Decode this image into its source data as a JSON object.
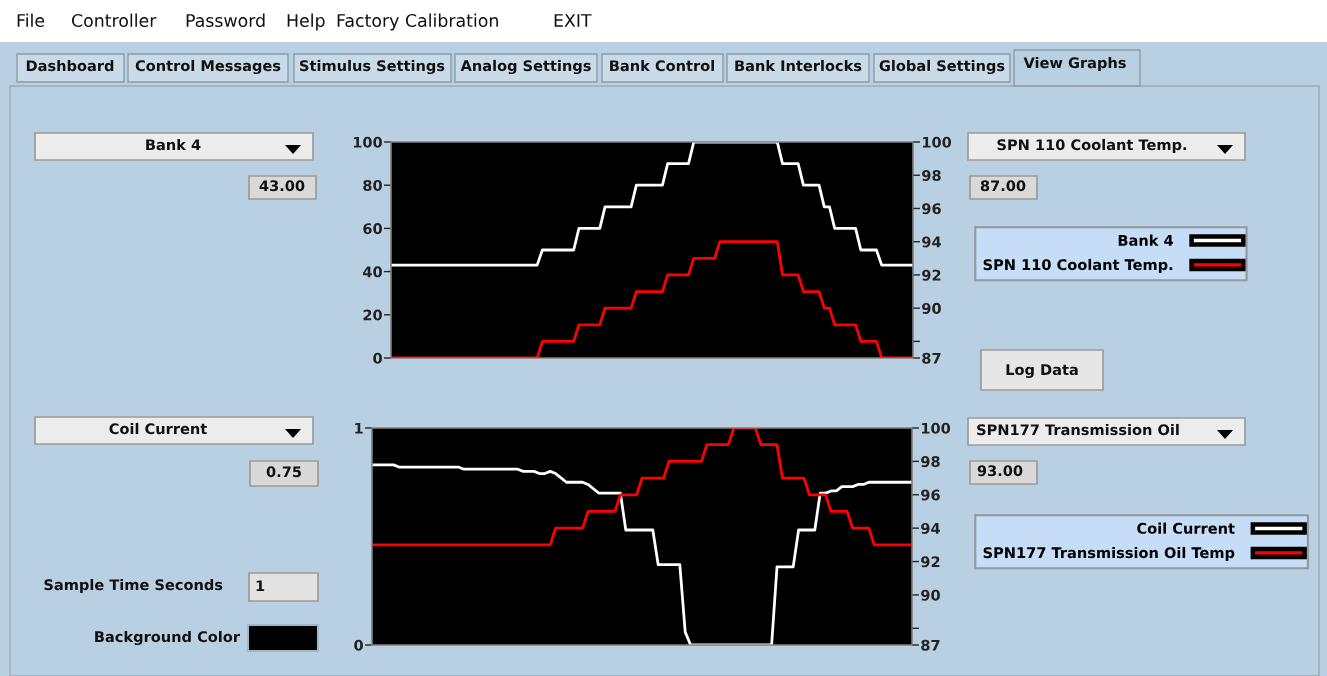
{
  "chart_data": [
    {
      "type": "other",
      "annotations": [
        "File",
        "Controller",
        "Password",
        "Help",
        "Factory Calibration",
        "EXIT",
        "Dashboard",
        "Control Messages",
        "Stimulus Settings",
        "Analog Settings",
        "Bank Control",
        "Bank Interlocks",
        "Global Settings",
        "View Graphs"
      ]
    },
    {
      "type": "line",
      "categories": [
        null,
        null,
        null,
        null,
        null,
        null,
        null,
        null,
        null,
        null,
        null,
        null,
        null,
        null,
        null,
        null,
        null,
        null,
        null,
        null,
        null,
        null,
        null,
        null,
        null,
        null,
        null,
        null,
        null,
        null,
        null,
        null,
        null,
        null,
        null,
        null,
        null,
        null,
        null,
        null,
        null,
        null,
        null,
        null,
        null,
        null,
        null,
        null,
        null,
        null,
        null,
        null,
        null,
        null,
        null,
        null,
        null,
        null,
        null,
        null,
        null,
        null,
        null,
        null,
        null,
        null,
        null,
        null,
        null,
        null,
        null,
        null,
        null,
        null,
        null,
        null,
        null,
        null,
        null,
        null,
        null,
        null,
        null,
        null,
        null,
        null,
        null,
        null,
        null,
        null,
        null,
        null,
        null,
        null,
        null,
        null,
        null,
        null,
        null,
        null,
        null
      ],
      "series": [
        {
          "name": "Bank 4",
          "color": "#ffffff",
          "values": [
            43,
            43,
            43,
            43,
            43,
            43,
            43,
            43,
            43,
            43,
            43,
            43,
            43,
            43,
            43,
            43,
            43,
            43,
            43,
            43,
            43,
            43,
            43,
            43,
            43,
            43,
            43,
            43,
            43,
            50,
            50,
            50,
            50,
            50,
            50,
            50,
            60,
            60,
            60,
            60,
            60,
            70,
            70,
            70,
            70,
            70,
            70,
            80,
            80,
            80,
            80,
            80,
            80,
            90,
            90,
            90,
            90,
            90,
            100,
            100,
            100,
            100,
            100,
            100,
            100,
            100,
            100,
            100,
            100,
            100,
            100,
            100,
            100,
            100,
            100,
            90,
            90,
            90,
            90,
            80,
            80,
            80,
            80,
            70,
            70,
            60,
            60,
            60,
            60,
            60,
            50,
            50,
            50,
            50,
            43,
            43,
            43,
            43,
            43,
            43,
            43
          ]
        },
        {
          "name": "SPN 110 Coolant Temp.",
          "color": "#ff0000",
          "axis": "y2",
          "values": [
            87,
            87,
            87,
            87,
            87,
            87,
            87,
            87,
            87,
            87,
            87,
            87,
            87,
            87,
            87,
            87,
            87,
            87,
            87,
            87,
            87,
            87,
            87,
            87,
            87,
            87,
            87,
            87,
            87,
            88,
            88,
            88,
            88,
            88,
            88,
            88,
            89,
            89,
            89,
            89,
            89,
            90,
            90,
            90,
            90,
            90,
            90,
            91,
            91,
            91,
            91,
            91,
            91,
            92,
            92,
            92,
            92,
            92,
            93,
            93,
            93,
            93,
            93,
            94,
            94,
            94,
            94,
            94,
            94,
            94,
            94,
            94,
            94,
            94,
            94,
            92,
            92,
            92,
            92,
            91,
            91,
            91,
            91,
            90,
            90,
            89,
            89,
            89,
            89,
            89,
            88,
            88,
            88,
            88,
            87,
            87,
            87,
            87,
            87,
            87,
            87
          ]
        }
      ],
      "ylim": [
        0,
        100
      ],
      "yticks": [
        0,
        20,
        40,
        60,
        80,
        100
      ],
      "y2lim": [
        87,
        100
      ],
      "y2ticks": [
        100,
        98,
        96,
        94,
        92,
        90,
        {
          "value": 88,
          "label": null
        },
        87
      ],
      "legend": "right",
      "grid": false,
      "marker": "none",
      "line_style": "solid",
      "annotations": [
        "Bank 4",
        "43.00",
        "SPN 110 Coolant Temp.",
        "87.00",
        "Log Data"
      ]
    },
    {
      "type": "line",
      "categories": [
        null,
        null,
        null,
        null,
        null,
        null,
        null,
        null,
        null,
        null,
        null,
        null,
        null,
        null,
        null,
        null,
        null,
        null,
        null,
        null,
        null,
        null,
        null,
        null,
        null,
        null,
        null,
        null,
        null,
        null,
        null,
        null,
        null,
        null,
        null,
        null,
        null,
        null,
        null,
        null,
        null,
        null,
        null,
        null,
        null,
        null,
        null,
        null,
        null,
        null,
        null,
        null,
        null,
        null,
        null,
        null,
        null,
        null,
        null,
        null,
        null,
        null,
        null,
        null,
        null,
        null,
        null,
        null,
        null,
        null,
        null,
        null,
        null,
        null,
        null,
        null,
        null,
        null,
        null,
        null,
        null,
        null,
        null,
        null,
        null,
        null,
        null,
        null,
        null,
        null,
        null,
        null,
        null,
        null,
        null,
        null,
        null,
        null,
        null,
        null,
        null
      ],
      "series": [
        {
          "name": "Coil Current",
          "color": "#ffffff",
          "values": [
            0.83,
            0.83,
            0.83,
            0.83,
            0.83,
            0.82,
            0.82,
            0.82,
            0.82,
            0.82,
            0.82,
            0.82,
            0.82,
            0.82,
            0.82,
            0.82,
            0.82,
            0.81,
            0.81,
            0.81,
            0.81,
            0.81,
            0.81,
            0.81,
            0.81,
            0.81,
            0.81,
            0.81,
            0.8,
            0.8,
            0.8,
            0.79,
            0.79,
            0.8,
            0.79,
            0.77,
            0.75,
            0.75,
            0.75,
            0.75,
            0.74,
            0.72,
            0.7,
            0.7,
            0.7,
            0.7,
            0.7,
            0.53,
            0.53,
            0.53,
            0.53,
            0.53,
            0.53,
            0.37,
            0.37,
            0.37,
            0.37,
            0.37,
            0.06,
            0,
            0,
            0,
            0,
            0,
            0,
            0,
            0,
            0,
            0,
            0,
            0,
            0,
            0,
            0,
            0,
            0.36,
            0.36,
            0.36,
            0.36,
            0.53,
            0.53,
            0.53,
            0.53,
            0.7,
            0.7,
            0.71,
            0.71,
            0.73,
            0.73,
            0.73,
            0.74,
            0.74,
            0.75,
            0.75,
            0.75,
            0.75,
            0.75,
            0.75,
            0.75,
            0.75,
            0.75
          ]
        },
        {
          "name": "SPN177 Transmission Oil Temp",
          "color": "#ff0000",
          "axis": "y2",
          "values": [
            93,
            93,
            93,
            93,
            93,
            93,
            93,
            93,
            93,
            93,
            93,
            93,
            93,
            93,
            93,
            93,
            93,
            93,
            93,
            93,
            93,
            93,
            93,
            93,
            93,
            93,
            93,
            93,
            93,
            93,
            93,
            93,
            93,
            93,
            94,
            94,
            94,
            94,
            94,
            94,
            95,
            95,
            95,
            95,
            95,
            95,
            96,
            96,
            96,
            96,
            97,
            97,
            97,
            97,
            97,
            98,
            98,
            98,
            98,
            98,
            98,
            98,
            99,
            99,
            99,
            99,
            99,
            100,
            100,
            100,
            100,
            100,
            99,
            99,
            99,
            99,
            97,
            97,
            97,
            97,
            97,
            96,
            96,
            96,
            96,
            95,
            95,
            95,
            95,
            94,
            94,
            94,
            94,
            93,
            93,
            93,
            93,
            93,
            93,
            93,
            93
          ]
        }
      ],
      "ylim": [
        0,
        1
      ],
      "yticks": [
        0,
        1
      ],
      "y2lim": [
        87,
        100
      ],
      "y2ticks": [
        100,
        98,
        96,
        94,
        92,
        90,
        {
          "value": 88,
          "label": null
        },
        87
      ],
      "legend": "right",
      "grid": false,
      "marker": "none",
      "line_style": "solid",
      "annotations": [
        "Coil Current",
        "0.75",
        "SPN177 Transmission Oil",
        "93.00",
        "Sample Time Seconds",
        "1",
        "Background Color"
      ]
    }
  ]
}
